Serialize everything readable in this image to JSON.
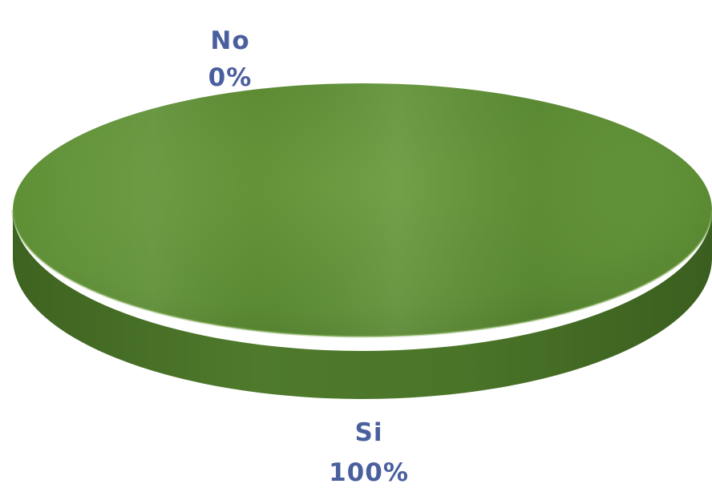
{
  "chart_data": {
    "type": "pie",
    "style": "3d",
    "title": "",
    "categories": [
      "Si",
      "No"
    ],
    "values": [
      100,
      0
    ],
    "labels": [
      {
        "name": "Si",
        "percent": "100%"
      },
      {
        "name": "No",
        "percent": "0%"
      }
    ],
    "legend": "none",
    "colors": {
      "Si": "#5f8f36",
      "No": "#7fb04e",
      "label_text": "#4a5f9e"
    }
  }
}
